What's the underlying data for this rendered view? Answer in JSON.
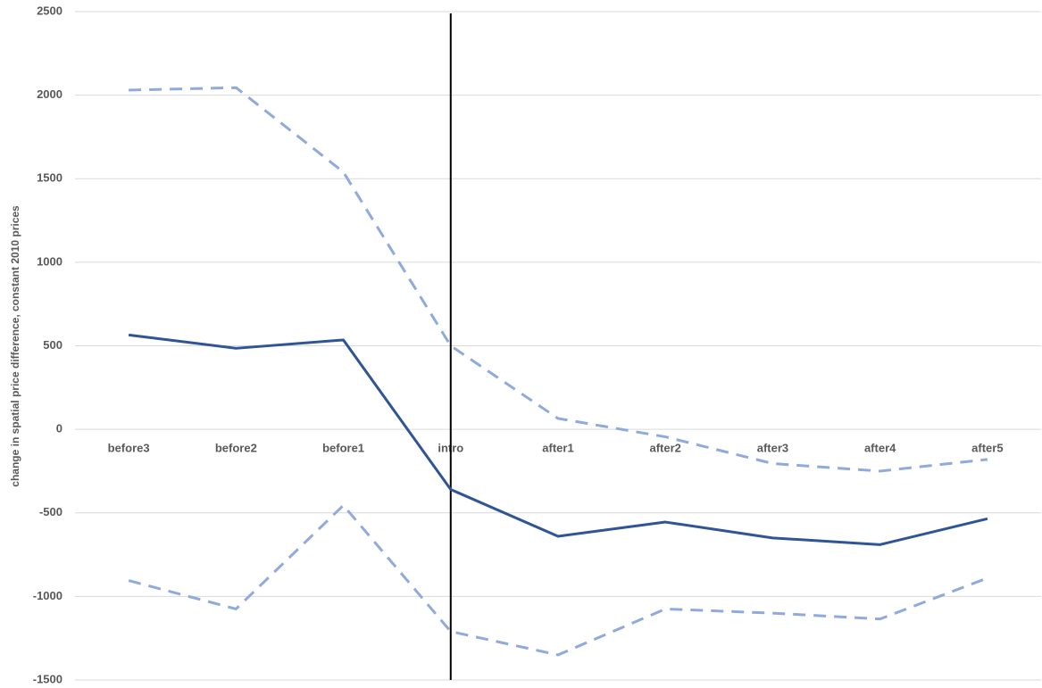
{
  "chart_data": {
    "type": "line",
    "y_label": "change in spatial price difference, constant 2010 prices",
    "categories": [
      "before3",
      "before2",
      "before1",
      "intro",
      "after1",
      "after2",
      "after3",
      "after4",
      "after5"
    ],
    "series": [
      {
        "color": "#8faadc",
        "dashed": true,
        "values": [
          2030,
          2045,
          1540,
          500,
          65,
          -45,
          -205,
          -250,
          -180
        ]
      },
      {
        "color": "#2f5597",
        "dashed": false,
        "values": [
          565,
          485,
          535,
          -360,
          -640,
          -555,
          -650,
          -690,
          -535
        ]
      },
      {
        "color": "#8faadc",
        "dashed": true,
        "values": [
          -905,
          -1075,
          -455,
          -1210,
          -1350,
          -1075,
          -1100,
          -1135,
          -890
        ]
      }
    ],
    "ylim": [
      -1500,
      2500
    ],
    "yticks": [
      -1500,
      -1000,
      -500,
      0,
      500,
      1000,
      1500,
      2000,
      2500
    ],
    "grid": true
  }
}
